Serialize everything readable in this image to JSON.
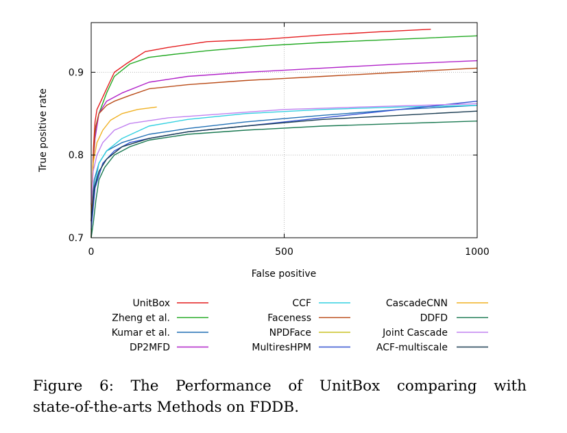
{
  "chart_data": {
    "type": "line",
    "title": "",
    "xlabel": "False positive",
    "ylabel": "True positive rate",
    "xlim": [
      0,
      1000
    ],
    "ylim": [
      0.7,
      0.96
    ],
    "x_ticks": [
      0,
      500,
      1000
    ],
    "y_ticks": [
      0.7,
      0.8,
      0.9
    ],
    "x_tick_labels": [
      "0",
      "500",
      "1000"
    ],
    "y_tick_labels": [
      "0.7",
      "0.8",
      "0.9"
    ],
    "grid": true,
    "grid_lines": {
      "x": [
        500
      ],
      "y": [
        0.8,
        0.9
      ]
    },
    "legend_position": "bottom",
    "series": [
      {
        "name": "UnitBox",
        "color": "#e41a1c",
        "points": [
          [
            0,
            0.7
          ],
          [
            3,
            0.77
          ],
          [
            6,
            0.81
          ],
          [
            10,
            0.84
          ],
          [
            15,
            0.855
          ],
          [
            25,
            0.865
          ],
          [
            40,
            0.88
          ],
          [
            60,
            0.9
          ],
          [
            90,
            0.91
          ],
          [
            140,
            0.925
          ],
          [
            200,
            0.93
          ],
          [
            300,
            0.937
          ],
          [
            450,
            0.94
          ],
          [
            600,
            0.945
          ],
          [
            750,
            0.949
          ],
          [
            880,
            0.952
          ]
        ]
      },
      {
        "name": "Zheng et al.",
        "color": "#1fa81f",
        "points": [
          [
            0,
            0.7
          ],
          [
            3,
            0.76
          ],
          [
            6,
            0.8
          ],
          [
            12,
            0.835
          ],
          [
            20,
            0.85
          ],
          [
            40,
            0.875
          ],
          [
            60,
            0.895
          ],
          [
            100,
            0.91
          ],
          [
            150,
            0.918
          ],
          [
            220,
            0.922
          ],
          [
            300,
            0.926
          ],
          [
            450,
            0.932
          ],
          [
            600,
            0.936
          ],
          [
            800,
            0.94
          ],
          [
            1000,
            0.944
          ]
        ]
      },
      {
        "name": "Kumar et al.",
        "color": "#1f6fb4",
        "points": [
          [
            0,
            0.72
          ],
          [
            8,
            0.77
          ],
          [
            20,
            0.79
          ],
          [
            40,
            0.805
          ],
          [
            80,
            0.815
          ],
          [
            150,
            0.825
          ],
          [
            250,
            0.832
          ],
          [
            400,
            0.84
          ],
          [
            600,
            0.848
          ],
          [
            800,
            0.855
          ],
          [
            1000,
            0.86
          ]
        ]
      },
      {
        "name": "DP2MFD",
        "color": "#b020c8",
        "points": [
          [
            0,
            0.72
          ],
          [
            5,
            0.79
          ],
          [
            10,
            0.82
          ],
          [
            20,
            0.85
          ],
          [
            40,
            0.865
          ],
          [
            80,
            0.875
          ],
          [
            150,
            0.888
          ],
          [
            250,
            0.895
          ],
          [
            400,
            0.9
          ],
          [
            600,
            0.905
          ],
          [
            800,
            0.91
          ],
          [
            1000,
            0.914
          ]
        ]
      },
      {
        "name": "CCF",
        "color": "#30d0e0",
        "points": [
          [
            0,
            0.72
          ],
          [
            8,
            0.76
          ],
          [
            20,
            0.79
          ],
          [
            40,
            0.805
          ],
          [
            80,
            0.82
          ],
          [
            150,
            0.835
          ],
          [
            250,
            0.843
          ],
          [
            400,
            0.85
          ],
          [
            600,
            0.855
          ],
          [
            800,
            0.858
          ],
          [
            1000,
            0.86
          ]
        ]
      },
      {
        "name": "Faceness",
        "color": "#b94a16",
        "points": [
          [
            0,
            0.72
          ],
          [
            5,
            0.79
          ],
          [
            10,
            0.83
          ],
          [
            20,
            0.85
          ],
          [
            40,
            0.86
          ],
          [
            60,
            0.865
          ],
          [
            100,
            0.872
          ],
          [
            150,
            0.88
          ],
          [
            250,
            0.885
          ],
          [
            400,
            0.89
          ],
          [
            600,
            0.895
          ],
          [
            800,
            0.9
          ],
          [
            1000,
            0.905
          ]
        ]
      },
      {
        "name": "NPDFace",
        "color": "#c8c020",
        "points": []
      },
      {
        "name": "MultiresHPM",
        "color": "#3050d0",
        "points": [
          [
            0,
            0.71
          ],
          [
            10,
            0.76
          ],
          [
            30,
            0.79
          ],
          [
            60,
            0.805
          ],
          [
            100,
            0.815
          ],
          [
            150,
            0.82
          ],
          [
            250,
            0.828
          ],
          [
            400,
            0.835
          ],
          [
            600,
            0.845
          ],
          [
            800,
            0.855
          ],
          [
            1000,
            0.865
          ]
        ]
      },
      {
        "name": "CascadeCNN",
        "color": "#f0b020",
        "points": [
          [
            0,
            0.74
          ],
          [
            5,
            0.79
          ],
          [
            15,
            0.815
          ],
          [
            30,
            0.83
          ],
          [
            50,
            0.842
          ],
          [
            80,
            0.85
          ],
          [
            120,
            0.855
          ],
          [
            170,
            0.858
          ]
        ]
      },
      {
        "name": "DDFD",
        "color": "#187850",
        "points": [
          [
            0,
            0.7
          ],
          [
            6,
            0.72
          ],
          [
            12,
            0.745
          ],
          [
            20,
            0.77
          ],
          [
            35,
            0.785
          ],
          [
            60,
            0.8
          ],
          [
            100,
            0.81
          ],
          [
            150,
            0.818
          ],
          [
            250,
            0.825
          ],
          [
            400,
            0.83
          ],
          [
            600,
            0.835
          ],
          [
            800,
            0.838
          ],
          [
            1000,
            0.841
          ]
        ]
      },
      {
        "name": "Joint Cascade",
        "color": "#c080f0",
        "points": [
          [
            0,
            0.74
          ],
          [
            5,
            0.78
          ],
          [
            15,
            0.8
          ],
          [
            30,
            0.815
          ],
          [
            60,
            0.83
          ],
          [
            100,
            0.838
          ],
          [
            200,
            0.845
          ],
          [
            350,
            0.85
          ],
          [
            500,
            0.855
          ],
          [
            700,
            0.858
          ],
          [
            1000,
            0.862
          ]
        ]
      },
      {
        "name": "ACF-multiscale",
        "color": "#183a50",
        "points": [
          [
            0,
            0.72
          ],
          [
            8,
            0.76
          ],
          [
            20,
            0.78
          ],
          [
            40,
            0.795
          ],
          [
            80,
            0.81
          ],
          [
            150,
            0.82
          ],
          [
            250,
            0.828
          ],
          [
            400,
            0.835
          ],
          [
            600,
            0.843
          ],
          [
            800,
            0.848
          ],
          [
            1000,
            0.853
          ]
        ]
      }
    ]
  },
  "legend_columns": [
    [
      "UnitBox",
      "Zheng et al.",
      "Kumar et al.",
      "DP2MFD"
    ],
    [
      "CCF",
      "Faceness",
      "NPDFace",
      "MultiresHPM"
    ],
    [
      "CascadeCNN",
      "DDFD",
      "Joint Cascade",
      "ACF-multiscale"
    ]
  ],
  "caption": {
    "line1": "Figure 6: The Performance of UnitBox comparing with",
    "line2": "state-of-the-arts Methods on FDDB."
  }
}
